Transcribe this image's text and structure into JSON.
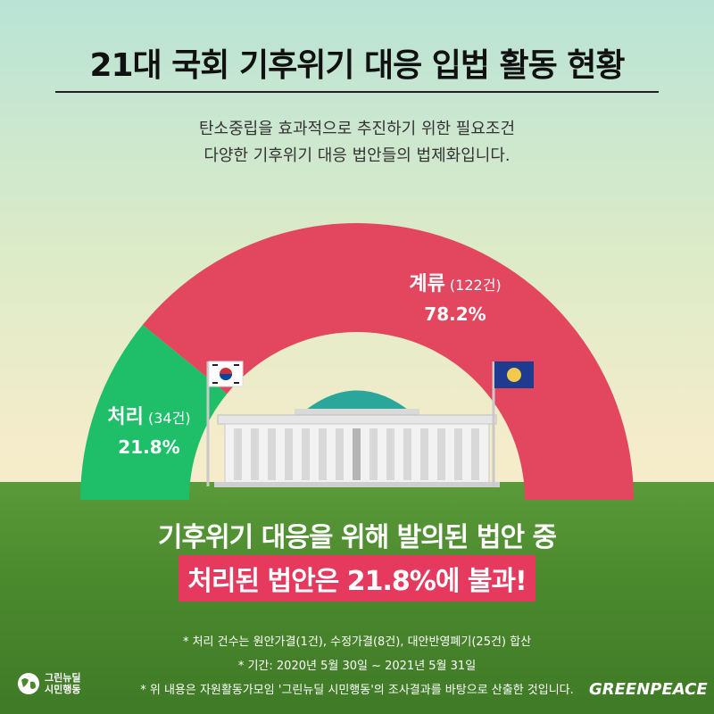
{
  "title": "21대 국회 기후위기 대응 입법 활동 현황",
  "subtitle_line1": "탄소중립을 효과적으로 추진하기 위한 필요조건",
  "subtitle_line2": "다양한 기후위기 대응 법안들의 법제화입니다.",
  "chart_data": {
    "type": "pie",
    "style": "semicircle-donut",
    "categories": [
      "처리",
      "계류"
    ],
    "counts": [
      34,
      122
    ],
    "count_labels": [
      "(34건)",
      "(122건)"
    ],
    "values": [
      21.8,
      78.2
    ],
    "value_labels": [
      "21.8%",
      "78.2%"
    ],
    "colors": [
      "#1fbf6a",
      "#e2475f"
    ]
  },
  "headline_line1": "기후위기 대응을 위해 발의된 법안 중",
  "headline_line2": "처리된 법안은 21.8%에 불과!",
  "notes": [
    "* 처리 건수는 원안가결(1건), 수정가결(8건), 대안반영폐기(25건) 합산",
    "* 기간: 2020년 5월 30일 ~ 2021년 5월 31일",
    "* 위 내용은 자원활동가모임 '그린뉴딜 시민행동'의 조사결과를 바탕으로 산출한 것입니다."
  ],
  "logo_left_line1": "그린뉴딜",
  "logo_left_line2": "시민행동",
  "logo_right": "GREENPEACE"
}
